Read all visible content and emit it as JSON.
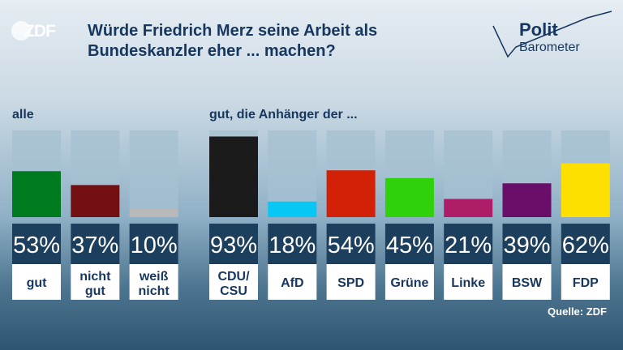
{
  "brand": {
    "logo_text": "ZDF"
  },
  "header": {
    "title_line1": "Würde Friedrich Merz seine Arbeit als",
    "title_line2": "Bundeskanzler eher ... machen?"
  },
  "badge": {
    "line1": "Polit",
    "line2": "Barometer"
  },
  "sections": {
    "all_label": "alle",
    "party_label": "gut, die Anhänger der ..."
  },
  "source": "Quelle: ZDF",
  "colors": {
    "track": "#a6c0d2",
    "label_box": "#1d3f5e",
    "category_box": "#ffffff",
    "text_dark": "#17375e"
  },
  "chart_data": {
    "type": "bar",
    "title": "Würde Friedrich Merz seine Arbeit als Bundeskanzler eher ... machen?",
    "ylim": [
      0,
      100
    ],
    "unit": "%",
    "groups": [
      {
        "label": "alle",
        "categories": [
          {
            "label_lines": [
              "gut"
            ],
            "value": 53,
            "display": "53%",
            "color": "#007a1e"
          },
          {
            "label_lines": [
              "nicht",
              "gut"
            ],
            "value": 37,
            "display": "37%",
            "color": "#710f12"
          },
          {
            "label_lines": [
              "weiß",
              "nicht"
            ],
            "value": 10,
            "display": "10%",
            "color": "#b9b9b9"
          }
        ]
      },
      {
        "label": "gut, die Anhänger der ...",
        "categories": [
          {
            "label_lines": [
              "CDU/",
              "CSU"
            ],
            "value": 93,
            "display": "93%",
            "color": "#1b1b1b"
          },
          {
            "label_lines": [
              "AfD"
            ],
            "value": 18,
            "display": "18%",
            "color": "#07c8f5"
          },
          {
            "label_lines": [
              "SPD"
            ],
            "value": 54,
            "display": "54%",
            "color": "#d22106"
          },
          {
            "label_lines": [
              "Grüne"
            ],
            "value": 45,
            "display": "45%",
            "color": "#2fd10a"
          },
          {
            "label_lines": [
              "Linke"
            ],
            "value": 21,
            "display": "21%",
            "color": "#ae1d68"
          },
          {
            "label_lines": [
              "BSW"
            ],
            "value": 39,
            "display": "39%",
            "color": "#6a0f69"
          },
          {
            "label_lines": [
              "FDP"
            ],
            "value": 62,
            "display": "62%",
            "color": "#fee000"
          }
        ]
      }
    ]
  }
}
